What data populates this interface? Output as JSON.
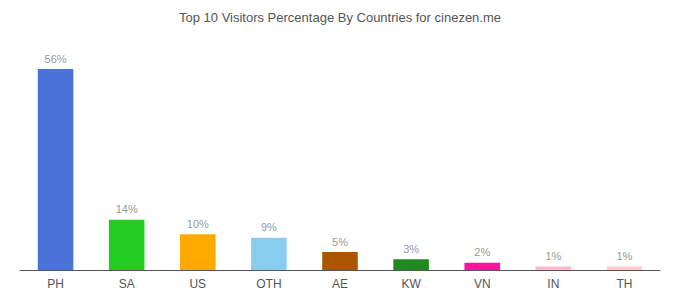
{
  "chart_data": {
    "type": "bar",
    "title": "Top 10 Visitors Percentage By Countries for cinezen.me",
    "categories": [
      "PH",
      "SA",
      "US",
      "OTH",
      "AE",
      "KW",
      "VN",
      "IN",
      "TH"
    ],
    "values": [
      56,
      14,
      10,
      9,
      5,
      3,
      2,
      1,
      1
    ],
    "value_labels": [
      "56%",
      "14%",
      "10%",
      "9%",
      "5%",
      "3%",
      "2%",
      "1%",
      "1%"
    ],
    "colors": [
      "#4a72d9",
      "#22cc22",
      "#ffaa00",
      "#88ccee",
      "#aa5500",
      "#228822",
      "#ff1199",
      "#ffbbcc",
      "#ffcccc"
    ],
    "ylim": [
      0,
      63
    ],
    "grid": false,
    "data_labels": true,
    "tick_labels": "x"
  }
}
